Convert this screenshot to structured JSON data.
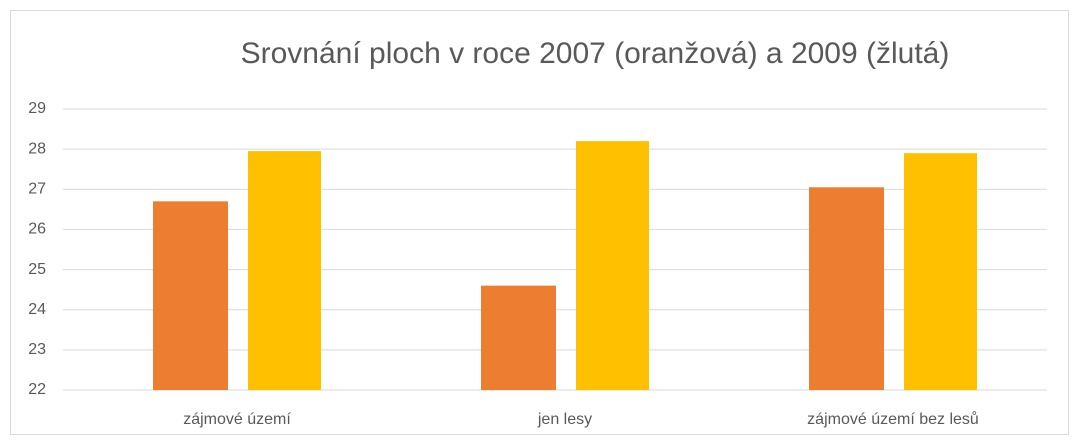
{
  "chart_data": {
    "type": "bar",
    "title": "Srovnání ploch v roce 2007 (oranžová) a 2009 (žlutá)",
    "categories": [
      "zájmové území",
      "jen lesy",
      "zájmové území bez lesů"
    ],
    "series": [
      {
        "color": "#ed7d31",
        "values": [
          26.7,
          24.6,
          27.05
        ]
      },
      {
        "color": "#ffc000",
        "values": [
          27.95,
          28.2,
          27.9
        ]
      }
    ],
    "ylim": [
      22,
      29
    ],
    "yticks": [
      22,
      23,
      24,
      25,
      26,
      27,
      28,
      29
    ],
    "grid": true
  }
}
